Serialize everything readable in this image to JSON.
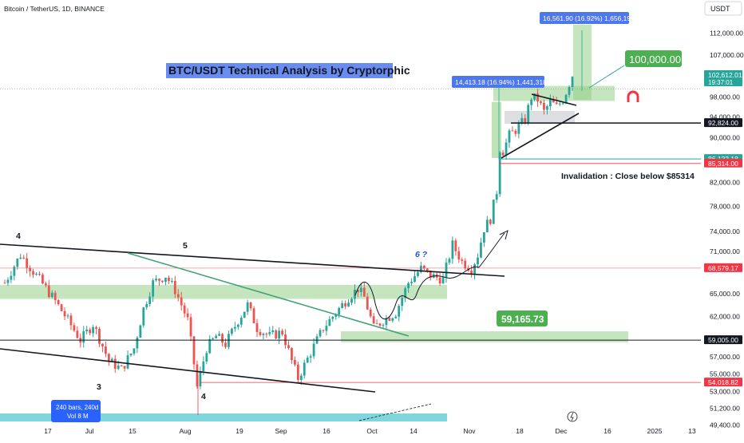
{
  "header": {
    "symbol": "Bitcoin / TetherUS, 1D, BINANCE",
    "currency": "USDT"
  },
  "title": "BTC/USDT Technical Analysis by Cryptorphic",
  "price_scale": {
    "ticks": [
      "112,000.00",
      "107,000.00",
      "98,000.00",
      "94,000.00",
      "90,000.00",
      "82,000.00",
      "78,000.00",
      "74,000.00",
      "71,000.00",
      "65,000.00",
      "62,000.00",
      "57,000.00",
      "55,000.00",
      "53,000.00",
      "51,200.00",
      "49,400.00"
    ],
    "badges": [
      {
        "text": "102,612.01",
        "sub": "19:37:01",
        "color": "#26a69a"
      },
      {
        "text": "92,824.00",
        "color": "#131722"
      },
      {
        "text": "86,122.18",
        "color": "#26a69a"
      },
      {
        "text": "85,314.00",
        "color": "#f23645"
      },
      {
        "text": "68,579.17",
        "color": "#f23645"
      },
      {
        "text": "59,005.00",
        "color": "#131722"
      },
      {
        "text": "54,018.82",
        "color": "#f23645"
      }
    ]
  },
  "time_axis": [
    "17",
    "Jul",
    "15",
    "Aug",
    "19",
    "Sep",
    "16",
    "Oct",
    "14",
    "Nov",
    "18",
    "Dec",
    "16",
    "2025",
    "13"
  ],
  "annotations": {
    "target": "100,000.00",
    "support": "59,165.73",
    "invalidation": "Invalidation : Close below $85314",
    "measure_top": "16,561.90 (16.92%) 1,656,190",
    "measure_flag": "14,413.18 (16.94%) 1,441,318",
    "waves": [
      "4",
      "5",
      "3",
      "4",
      "6 ?"
    ],
    "volume": "240 bars, 240d",
    "volume_sub": "Vol 8 M"
  },
  "colors": {
    "up": "#26a69a",
    "down": "#ef5350",
    "zone": "#93d087",
    "channel": "#43a27a",
    "blue": "#1e53e5"
  },
  "chart_data": {
    "type": "candlestick",
    "title": "BTC/USDT Technical Analysis by Cryptorphic",
    "series": "Bitcoin / TetherUS, 1D, BINANCE",
    "y_axis": {
      "scale": "log",
      "range": [
        48000,
        120000
      ],
      "unit": "USDT"
    },
    "x_axis": {
      "labels": [
        "17",
        "Jul",
        "15",
        "Aug",
        "19",
        "Sep",
        "16",
        "Oct",
        "14",
        "Nov",
        "18",
        "Dec",
        "16",
        "2025",
        "13"
      ]
    },
    "waypoints": [
      {
        "day": 0,
        "close": 66500
      },
      {
        "day": 5,
        "close": 70500
      },
      {
        "day": 10,
        "close": 67500
      },
      {
        "day": 16,
        "close": 64000
      },
      {
        "day": 20,
        "close": 61500
      },
      {
        "day": 24,
        "close": 59000
      },
      {
        "day": 28,
        "close": 61000
      },
      {
        "day": 33,
        "close": 56500
      },
      {
        "day": 37,
        "close": 55500
      },
      {
        "day": 41,
        "close": 58000
      },
      {
        "day": 44,
        "close": 63000
      },
      {
        "day": 47,
        "close": 66500
      },
      {
        "day": 51,
        "close": 67500
      },
      {
        "day": 54,
        "close": 65500
      },
      {
        "day": 58,
        "close": 61500
      },
      {
        "day": 61,
        "close": 53500
      },
      {
        "day": 64,
        "close": 58000
      },
      {
        "day": 67,
        "close": 59500
      },
      {
        "day": 70,
        "close": 58500
      },
      {
        "day": 74,
        "close": 61500
      },
      {
        "day": 77,
        "close": 63500
      },
      {
        "day": 80,
        "close": 60500
      },
      {
        "day": 84,
        "close": 59500
      },
      {
        "day": 88,
        "close": 60000
      },
      {
        "day": 91,
        "close": 56500
      },
      {
        "day": 93,
        "close": 54500
      },
      {
        "day": 97,
        "close": 57500
      },
      {
        "day": 101,
        "close": 60500
      },
      {
        "day": 105,
        "close": 62500
      },
      {
        "day": 109,
        "close": 64500
      },
      {
        "day": 112,
        "close": 65700
      },
      {
        "day": 114,
        "close": 64500
      },
      {
        "day": 117,
        "close": 60500
      },
      {
        "day": 120,
        "close": 61500
      },
      {
        "day": 124,
        "close": 62500
      },
      {
        "day": 128,
        "close": 66500
      },
      {
        "day": 132,
        "close": 68500
      },
      {
        "day": 135,
        "close": 67500
      },
      {
        "day": 139,
        "close": 67000
      },
      {
        "day": 142,
        "close": 72000
      },
      {
        "day": 145,
        "close": 69500
      },
      {
        "day": 148,
        "close": 68500
      },
      {
        "day": 150,
        "close": 70500
      },
      {
        "day": 152,
        "close": 74500
      },
      {
        "day": 154,
        "close": 76000
      },
      {
        "day": 156,
        "close": 80500
      },
      {
        "day": 157,
        "close": 88000
      },
      {
        "day": 158,
        "close": 87500
      },
      {
        "day": 160,
        "close": 90500
      },
      {
        "day": 162,
        "close": 91500
      },
      {
        "day": 165,
        "close": 93500
      },
      {
        "day": 167,
        "close": 98000
      },
      {
        "day": 169,
        "close": 97500
      },
      {
        "day": 171,
        "close": 95000
      },
      {
        "day": 173,
        "close": 97000
      },
      {
        "day": 175,
        "close": 96000
      },
      {
        "day": 177,
        "close": 97500
      },
      {
        "day": 178,
        "close": 99000
      },
      {
        "day": 180,
        "close": 102600
      }
    ],
    "levels": [
      {
        "label": "Target",
        "value": 100000
      },
      {
        "label": "Resistance",
        "value": 92824
      },
      {
        "label": "Invalidation",
        "value": 85314
      },
      {
        "label": "86,122.18",
        "value": 86122.18
      },
      {
        "label": "68,579.17",
        "value": 68579.17
      },
      {
        "label": "Support",
        "value": 59165.73
      },
      {
        "label": "59,005.00",
        "value": 59005
      },
      {
        "label": "54,018.82",
        "value": 54018.82
      }
    ]
  }
}
